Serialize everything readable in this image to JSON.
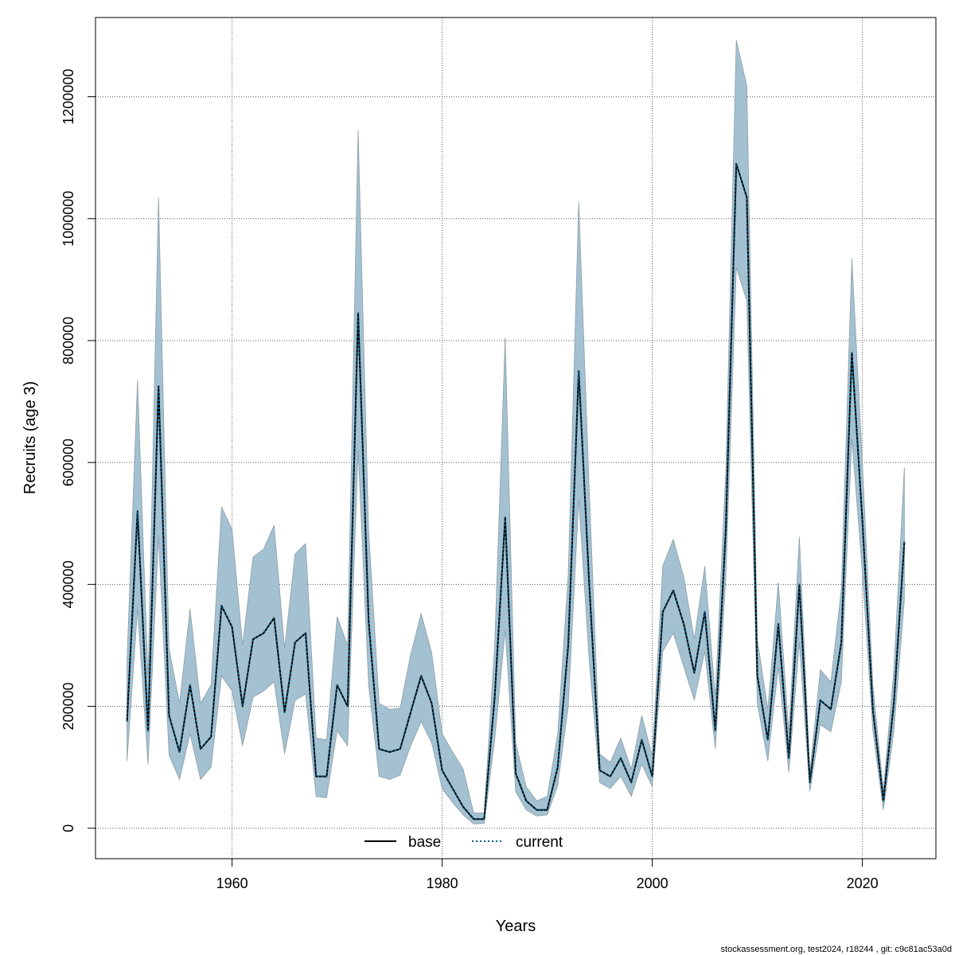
{
  "colors": {
    "band_fill": "#a3c1d1",
    "band_stroke": "#8d9ea8",
    "base_line": "#000000",
    "current_line": "#0b5f86",
    "grid": "#555555",
    "frame": "#000000"
  },
  "footer": "stockassessment.org, test2024, r18244 , git: c9c81ac53a0d",
  "chart_data": {
    "type": "area",
    "xlabel": "Years",
    "ylabel": "Recruits (age 3)",
    "xlim": [
      1947,
      2027
    ],
    "ylim": [
      -50000,
      1330000
    ],
    "x_ticks": [
      1960,
      1980,
      2000,
      2020
    ],
    "y_ticks": [
      0,
      200000,
      400000,
      600000,
      800000,
      1000000,
      1200000
    ],
    "grid": true,
    "legend": {
      "position": "bottom-center",
      "entries": [
        {
          "label": "base",
          "style": "solid"
        },
        {
          "label": "current",
          "style": "dotted"
        }
      ]
    },
    "x": [
      1950,
      1951,
      1952,
      1953,
      1954,
      1955,
      1956,
      1957,
      1958,
      1959,
      1960,
      1961,
      1962,
      1963,
      1964,
      1965,
      1966,
      1967,
      1968,
      1969,
      1970,
      1971,
      1972,
      1973,
      1974,
      1975,
      1976,
      1977,
      1978,
      1979,
      1980,
      1981,
      1982,
      1983,
      1984,
      1985,
      1986,
      1987,
      1988,
      1989,
      1990,
      1991,
      1992,
      1993,
      1994,
      1995,
      1996,
      1997,
      1998,
      1999,
      2000,
      2001,
      2002,
      2003,
      2004,
      2005,
      2006,
      2007,
      2008,
      2009,
      2010,
      2011,
      2012,
      2013,
      2014,
      2015,
      2016,
      2017,
      2018,
      2019,
      2020,
      2021,
      2022,
      2023,
      2024
    ],
    "series": [
      {
        "name": "base",
        "values": [
          175000,
          520000,
          160000,
          725000,
          185000,
          125000,
          235000,
          130000,
          150000,
          365000,
          330000,
          200000,
          310000,
          320000,
          345000,
          190000,
          305000,
          320000,
          85000,
          85000,
          235000,
          200000,
          845000,
          340000,
          130000,
          125000,
          130000,
          190000,
          250000,
          205000,
          95000,
          65000,
          35000,
          15000,
          15000,
          215000,
          510000,
          90000,
          45000,
          30000,
          30000,
          100000,
          300000,
          750000,
          400000,
          95000,
          85000,
          115000,
          75000,
          145000,
          85000,
          355000,
          390000,
          335000,
          255000,
          355000,
          160000,
          490000,
          1090000,
          1035000,
          250000,
          145000,
          335000,
          115000,
          400000,
          75000,
          210000,
          195000,
          305000,
          780000,
          505000,
          195000,
          45000,
          205000,
          470000
        ]
      },
      {
        "name": "current",
        "values": [
          175000,
          520000,
          160000,
          725000,
          185000,
          125000,
          235000,
          130000,
          150000,
          365000,
          330000,
          200000,
          310000,
          320000,
          345000,
          190000,
          305000,
          320000,
          85000,
          85000,
          235000,
          200000,
          845000,
          340000,
          130000,
          125000,
          130000,
          190000,
          250000,
          205000,
          95000,
          65000,
          35000,
          15000,
          15000,
          215000,
          510000,
          90000,
          45000,
          30000,
          30000,
          100000,
          300000,
          750000,
          400000,
          95000,
          85000,
          115000,
          75000,
          145000,
          85000,
          355000,
          390000,
          335000,
          255000,
          355000,
          160000,
          490000,
          1090000,
          1035000,
          250000,
          145000,
          335000,
          115000,
          400000,
          75000,
          210000,
          195000,
          305000,
          780000,
          505000,
          195000,
          45000,
          205000,
          470000
        ]
      }
    ],
    "band_lower": [
      110000,
      360000,
      105000,
      480000,
      120000,
      80000,
      155000,
      80000,
      100000,
      250000,
      225000,
      135000,
      215000,
      225000,
      240000,
      122000,
      210000,
      220000,
      52000,
      50000,
      160000,
      135000,
      620000,
      235000,
      85000,
      80000,
      87000,
      135000,
      175000,
      140000,
      65000,
      42000,
      22000,
      7000,
      8000,
      145000,
      325000,
      60000,
      30000,
      20000,
      22000,
      70000,
      200000,
      540000,
      275000,
      75000,
      65000,
      85000,
      52000,
      105000,
      68000,
      290000,
      320000,
      265000,
      210000,
      290000,
      130000,
      410000,
      920000,
      865000,
      205000,
      110000,
      265000,
      92000,
      305000,
      60000,
      170000,
      158000,
      240000,
      640000,
      420000,
      160000,
      30000,
      160000,
      375000
    ],
    "band_upper": [
      275000,
      735000,
      245000,
      1035000,
      295000,
      205000,
      360000,
      205000,
      235000,
      527000,
      490000,
      300000,
      445000,
      458000,
      497000,
      295000,
      450000,
      467000,
      148000,
      145000,
      347000,
      300000,
      1145000,
      488000,
      205000,
      195000,
      197000,
      285000,
      352000,
      288000,
      155000,
      125000,
      97000,
      25000,
      25000,
      300000,
      805000,
      140000,
      68000,
      45000,
      52000,
      155000,
      415000,
      1028000,
      555000,
      122000,
      108000,
      148000,
      97000,
      185000,
      118000,
      430000,
      474000,
      412000,
      310000,
      430000,
      215000,
      585000,
      1293000,
      1218000,
      310000,
      195000,
      403000,
      155000,
      478000,
      92000,
      260000,
      240000,
      393000,
      935000,
      600000,
      235000,
      62000,
      260000,
      592000
    ]
  }
}
